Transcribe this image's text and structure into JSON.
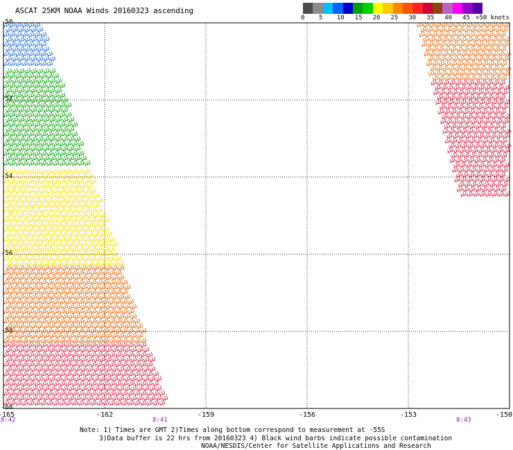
{
  "title": "ASCAT 25KM NOAA Winds 20160323 ascending",
  "colorbar": {
    "colors": [
      "#4a4a4a",
      "#8c8c8c",
      "#00bfff",
      "#0066ff",
      "#0000c8",
      "#00a000",
      "#00d000",
      "#ffff00",
      "#ffcc00",
      "#ff8800",
      "#ff5500",
      "#ff2222",
      "#cc0033",
      "#8b4513",
      "#c060c0",
      "#ff00ff",
      "#9900cc",
      "#5500aa"
    ],
    "labels": [
      "0",
      "5",
      "10",
      "15",
      "20",
      "25",
      "30",
      "35",
      "40",
      "45",
      ">50 knots"
    ]
  },
  "chart_data": {
    "type": "scatter",
    "xlim": [
      -165,
      -150
    ],
    "ylim": [
      -60,
      -50
    ],
    "x_ticks": [
      "-165",
      "-162",
      "-159",
      "-156",
      "-153",
      "-150"
    ],
    "y_ticks": [
      "-50",
      "-52",
      "-54",
      "-56",
      "-58",
      "-60"
    ],
    "grid": true,
    "time_labels": [
      {
        "label": "8:42",
        "lon": -165
      },
      {
        "label": "8:41",
        "lon": -160.5
      },
      {
        "label": "8:43",
        "lon": -151.5
      }
    ],
    "swaths": [
      {
        "name": "west",
        "bands": [
          {
            "lat": [
              -50.0,
              -51.2
            ],
            "color": "#1060d0"
          },
          {
            "lat": [
              -51.2,
              -53.8
            ],
            "color": "#00a000"
          },
          {
            "lat": [
              -53.8,
              -56.3
            ],
            "color": "#ffe000"
          },
          {
            "lat": [
              -56.3,
              -58.3
            ],
            "color": "#e06000"
          },
          {
            "lat": [
              -58.3,
              -60.0
            ],
            "color": "#d02040"
          }
        ]
      },
      {
        "name": "east",
        "bands": [
          {
            "lat": [
              -50.0,
              -51.5
            ],
            "color": "#e06000"
          },
          {
            "lat": [
              -51.5,
              -54.5
            ],
            "color": "#c81e3c"
          }
        ]
      }
    ]
  },
  "notes": {
    "line1": "Note: 1) Times are GMT 2)Times along bottom correspond to measurement at -55S",
    "line2": "3)Data buffer is 22 hrs from 20160323 4) Black wind barbs indicate possible contamination",
    "credit": "NOAA/NESDIS/Center for Satellite Applications and Research"
  }
}
